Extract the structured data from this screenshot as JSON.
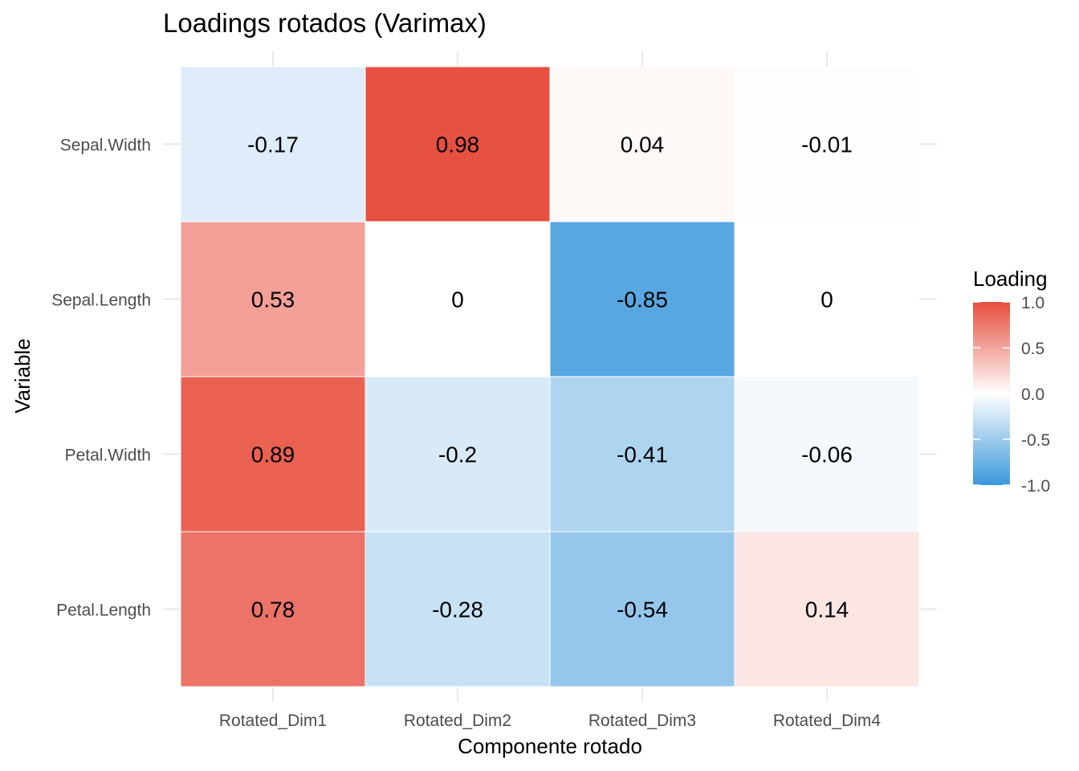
{
  "chart_data": {
    "type": "heatmap",
    "title": "Loadings rotados (Varimax)",
    "xlabel": "Componente rotado",
    "ylabel": "Variable",
    "x_categories": [
      "Rotated_Dim1",
      "Rotated_Dim2",
      "Rotated_Dim3",
      "Rotated_Dim4"
    ],
    "y_categories": [
      "Sepal.Width",
      "Sepal.Length",
      "Petal.Width",
      "Petal.Length"
    ],
    "values": [
      [
        -0.17,
        0.98,
        0.04,
        -0.01
      ],
      [
        0.53,
        0,
        -0.85,
        0
      ],
      [
        0.89,
        -0.2,
        -0.41,
        -0.06
      ],
      [
        0.78,
        -0.28,
        -0.54,
        0.14
      ]
    ],
    "labels": [
      [
        "-0.17",
        "0.98",
        "0.04",
        "-0.01"
      ],
      [
        "0.53",
        "0",
        "-0.85",
        "0"
      ],
      [
        "0.89",
        "-0.2",
        "-0.41",
        "-0.06"
      ],
      [
        "0.78",
        "-0.28",
        "-0.54",
        "0.14"
      ]
    ],
    "color_scale": {
      "low": "#3a98db",
      "mid": "#ffffff",
      "high": "#e74c3c",
      "limits": [
        -1,
        1
      ]
    },
    "legend": {
      "title": "Loading",
      "ticks": [
        1.0,
        0.5,
        0.0,
        -0.5,
        -1.0
      ],
      "tick_labels": [
        "1.0",
        "0.5",
        "0.0",
        "-0.5",
        "-1.0"
      ],
      "placement": "right"
    },
    "grid": true
  }
}
